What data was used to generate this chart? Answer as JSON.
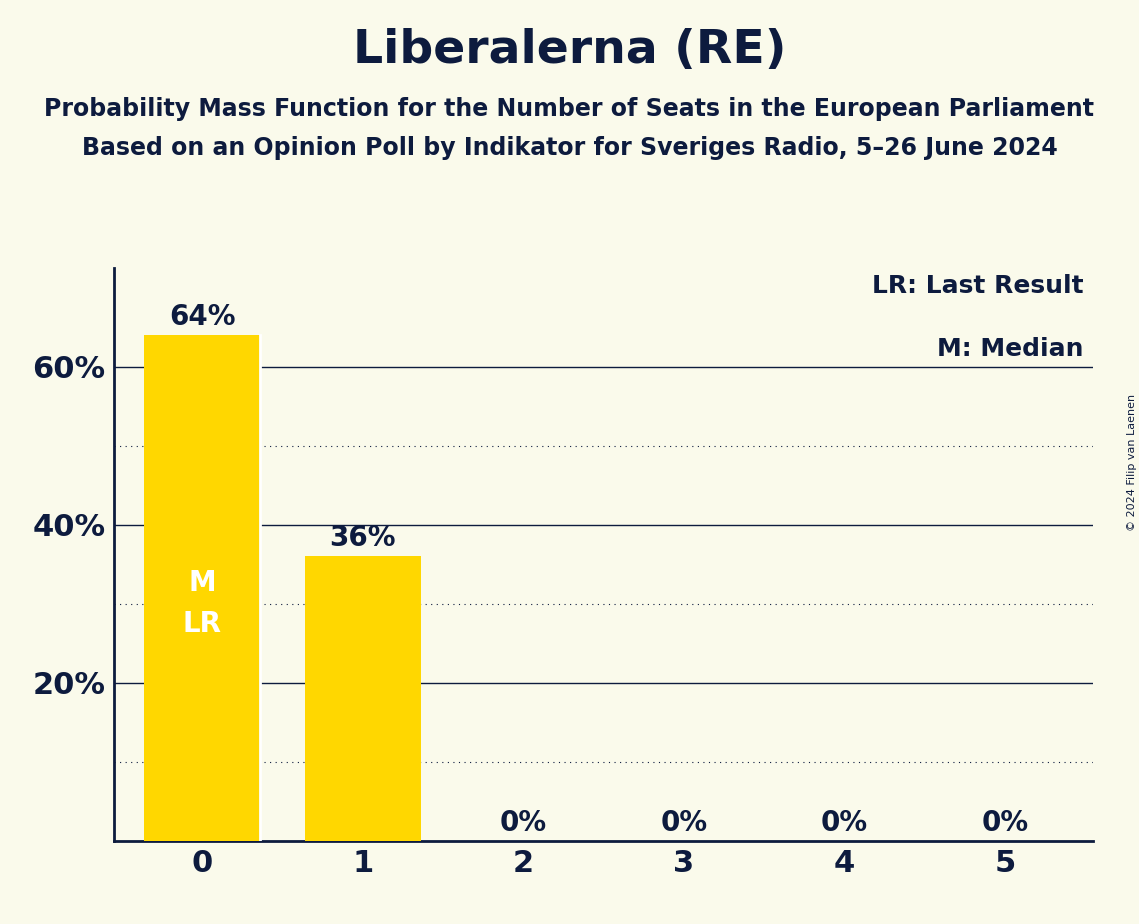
{
  "title": "Liberalerna (RE)",
  "subtitle1": "Probability Mass Function for the Number of Seats in the European Parliament",
  "subtitle2": "Based on an Opinion Poll by Indikator for Sveriges Radio, 5–26 June 2024",
  "copyright": "© 2024 Filip van Laenen",
  "legend_lr": "LR: Last Result",
  "legend_m": "M: Median",
  "categories": [
    0,
    1,
    2,
    3,
    4,
    5
  ],
  "values": [
    0.64,
    0.36,
    0.0,
    0.0,
    0.0,
    0.0
  ],
  "bar_color": "#FFD700",
  "background_color": "#FAFAEB",
  "text_color": "#0d1b3e",
  "median": 0,
  "last_result": 0,
  "ylim": [
    0,
    0.725
  ],
  "yticks": [
    0.2,
    0.4,
    0.6
  ],
  "ytick_labels": [
    "20%",
    "40%",
    "60%"
  ],
  "bar_width": 0.72,
  "title_fontsize": 34,
  "subtitle_fontsize": 17,
  "axis_tick_fontsize": 22,
  "bar_label_fontsize": 20,
  "annotation_fontsize": 20,
  "legend_fontsize": 18,
  "copyright_fontsize": 8,
  "solid_lines": [
    0.2,
    0.4,
    0.6
  ],
  "dotted_lines": [
    0.1,
    0.3,
    0.5
  ]
}
